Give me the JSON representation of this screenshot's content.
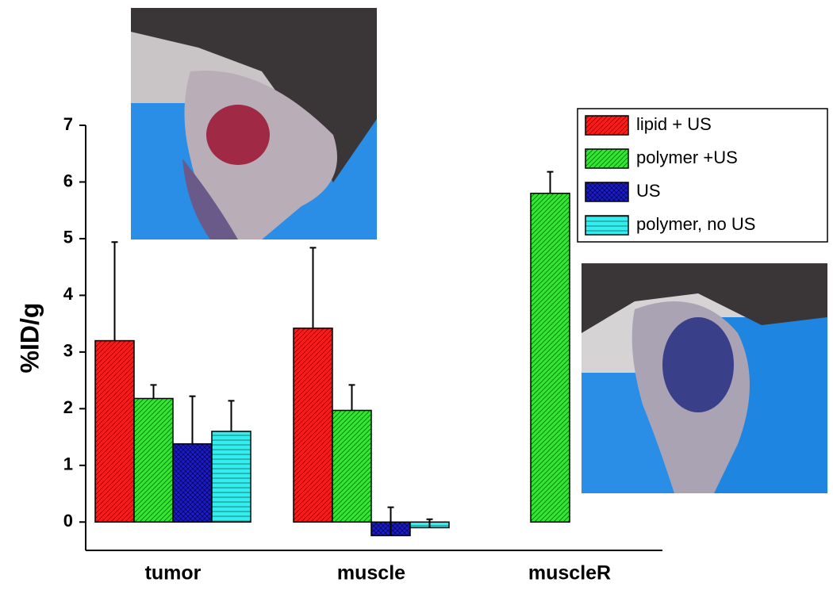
{
  "chart_data": {
    "type": "bar",
    "ylabel": "%ID/g",
    "categories": [
      "tumor",
      "muscle",
      "muscleR"
    ],
    "series": [
      {
        "name": "lipid + US",
        "color": "#ff1a1a",
        "pattern": "diagonal",
        "values": [
          3.2,
          3.42,
          null
        ],
        "errors": [
          1.74,
          1.42,
          null
        ]
      },
      {
        "name": "polymer +US",
        "color": "#33e633",
        "pattern": "diagonal",
        "values": [
          2.18,
          1.97,
          5.8
        ],
        "errors": [
          0.24,
          0.45,
          0.38
        ]
      },
      {
        "name": "US",
        "color": "#1a1ad0",
        "pattern": "crosshatch",
        "values": [
          1.38,
          -0.24,
          null
        ],
        "errors": [
          0.84,
          0.5,
          null
        ]
      },
      {
        "name": "polymer, no US",
        "color": "#33eeee",
        "pattern": "horizontal",
        "values": [
          1.6,
          -0.1,
          null
        ],
        "errors": [
          0.54,
          0.15,
          null
        ]
      }
    ],
    "ylim": [
      -0.5,
      7
    ],
    "yticks": [
      0,
      1,
      2,
      3,
      4,
      5,
      6,
      7
    ],
    "legend": "upper right"
  }
}
